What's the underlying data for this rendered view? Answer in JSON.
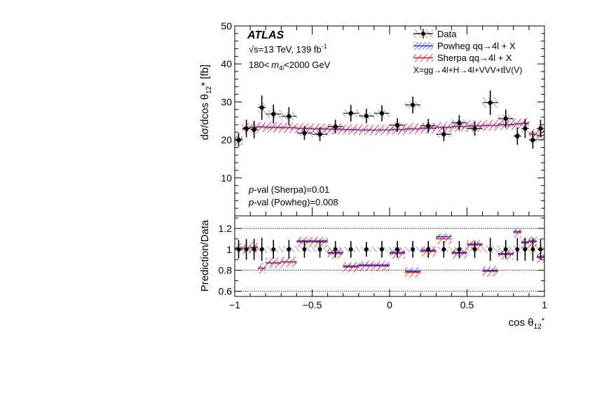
{
  "chart_data": {
    "type": "line",
    "experiment": "ATLAS",
    "energy_text": "=13 TeV, 139 fb",
    "lumi_exp": "-1",
    "sqrt_symbol": "√s",
    "mass_cut_left": "180<",
    "mass_cut_var": "m",
    "mass_cut_sub": "4l",
    "mass_cut_right": "<2000 GeV",
    "legend": {
      "data": "Data",
      "powheg": "Powheg qq→4l + X",
      "sherpa": "Sherpa qq→4l + X",
      "x_def": "X=gg→4l+H→4l+VVV+tt̄V(V)"
    },
    "pval_sherpa_label": "p",
    "pval_sherpa_text": "-val (Sherpa)=0.01",
    "pval_powheg_label": "p",
    "pval_powheg_text": "-val (Powheg)=0.008",
    "ylabel_top": "dσ/dcos θ",
    "ylabel_top_sub": "12",
    "ylabel_top_tail": "* [fb]",
    "ylabel_bottom": "Prediction/Data",
    "xlabel": "cos θ",
    "xlabel_sub": "12",
    "xlabel_tail": "*",
    "xlim": [
      -1,
      1
    ],
    "ylim_top": [
      0,
      50
    ],
    "ylim_bottom": [
      0.55,
      1.32
    ],
    "yticks_top": [
      10,
      20,
      30,
      40,
      50
    ],
    "yticks_bottom": [
      0.6,
      0.8,
      1,
      1.2
    ],
    "xticks": [
      -1,
      -0.5,
      0,
      0.5,
      1
    ],
    "ratio_reflines": [
      0.6,
      0.8,
      1.2
    ],
    "colors": {
      "data": "#000000",
      "powheg": "#2233dd",
      "sherpa": "#ee1111",
      "band": "#999999"
    },
    "bin_edges": [
      -1.0,
      -0.95,
      -0.9,
      -0.85,
      -0.8,
      -0.7,
      -0.6,
      -0.5,
      -0.4,
      -0.3,
      -0.2,
      -0.1,
      0.0,
      0.1,
      0.2,
      0.3,
      0.4,
      0.5,
      0.6,
      0.7,
      0.8,
      0.85,
      0.9,
      0.95,
      1.0
    ],
    "data": {
      "x": [
        -0.975,
        -0.925,
        -0.875,
        -0.825,
        -0.75,
        -0.65,
        -0.55,
        -0.45,
        -0.35,
        -0.25,
        -0.15,
        -0.05,
        0.05,
        0.15,
        0.25,
        0.35,
        0.45,
        0.55,
        0.65,
        0.75,
        0.825,
        0.875,
        0.925,
        0.975
      ],
      "y": [
        20.0,
        23.0,
        22.7,
        28.5,
        26.8,
        26.2,
        21.8,
        21.5,
        23.5,
        27.0,
        26.3,
        27.0,
        23.9,
        29.2,
        23.7,
        21.5,
        24.5,
        23.0,
        29.8,
        25.6,
        21.0,
        23.0,
        20.0,
        23.0
      ],
      "err": [
        1.8,
        2.3,
        2.3,
        3.2,
        2.5,
        2.4,
        1.8,
        1.8,
        1.8,
        2.2,
        1.9,
        2.1,
        1.8,
        2.2,
        1.8,
        1.8,
        2.0,
        1.9,
        3.2,
        2.4,
        2.3,
        2.5,
        2.3,
        2.3
      ]
    },
    "prediction": [
      20.0,
      23.1,
      23.3,
      23.4,
      23.3,
      23.2,
      23.0,
      22.9,
      22.8,
      22.7,
      22.6,
      22.6,
      22.7,
      22.9,
      23.1,
      23.3,
      23.5,
      23.7,
      23.8,
      24.0,
      24.2,
      24.4,
      21.5,
      21.2
    ],
    "ratio": {
      "sherpa": [
        1.01,
        1.01,
        1.02,
        0.82,
        0.87,
        0.88,
        1.07,
        1.07,
        0.96,
        0.83,
        0.84,
        0.84,
        0.96,
        0.78,
        0.98,
        1.1,
        0.96,
        1.04,
        0.79,
        0.95,
        1.16,
        1.06,
        1.07,
        0.92
      ],
      "powheg": [
        1.01,
        1.01,
        1.02,
        0.82,
        0.87,
        0.88,
        1.08,
        1.08,
        0.97,
        0.84,
        0.85,
        0.85,
        0.97,
        0.79,
        0.99,
        1.12,
        0.97,
        1.05,
        0.8,
        0.96,
        1.17,
        1.07,
        1.08,
        0.93
      ],
      "data_err": [
        0.09,
        0.1,
        0.1,
        0.11,
        0.09,
        0.09,
        0.08,
        0.08,
        0.08,
        0.08,
        0.07,
        0.08,
        0.08,
        0.08,
        0.08,
        0.08,
        0.08,
        0.08,
        0.11,
        0.09,
        0.11,
        0.11,
        0.11,
        0.1
      ]
    }
  }
}
